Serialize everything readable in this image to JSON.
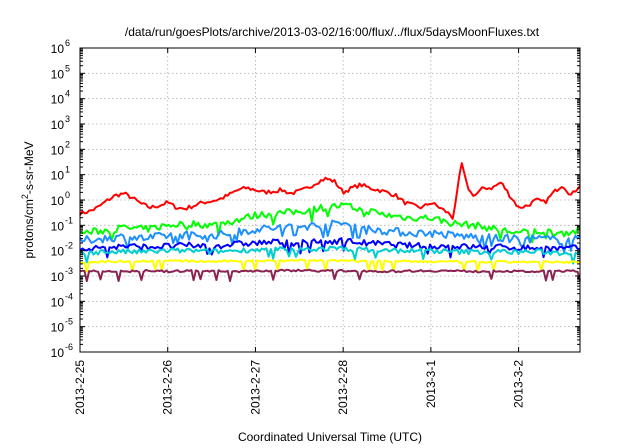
{
  "chart_data": {
    "type": "line",
    "title": "/data/run/goesPlots/archive/2013-03-02/16:00/flux/../flux/5daysMoonFluxes.txt",
    "xlabel": "Coordinated Universal Time (UTC)",
    "ylabel_parts": [
      "protons/cm",
      "2",
      "-s-sr-MeV"
    ],
    "yscale": "log",
    "ylim_exponents": [
      -6,
      6
    ],
    "y_ticks": [
      {
        "base": "10",
        "exp": "6"
      },
      {
        "base": "10",
        "exp": "5"
      },
      {
        "base": "10",
        "exp": "4"
      },
      {
        "base": "10",
        "exp": "3"
      },
      {
        "base": "10",
        "exp": "2"
      },
      {
        "base": "10",
        "exp": "1"
      },
      {
        "base": "10",
        "exp": "0"
      },
      {
        "base": "10",
        "exp": "-1"
      },
      {
        "base": "10",
        "exp": "-2"
      },
      {
        "base": "10",
        "exp": "-3"
      },
      {
        "base": "10",
        "exp": "-4"
      },
      {
        "base": "10",
        "exp": "-5"
      },
      {
        "base": "10",
        "exp": "-6"
      }
    ],
    "x_ticks": [
      "2013-2-25",
      "2013-2-26",
      "2013-2-27",
      "2013-2-28",
      "2013-3-1",
      "2013-3-2"
    ],
    "xlim_days": [
      0,
      5.7
    ],
    "grid": true,
    "legend": "none",
    "series": [
      {
        "color": "#ff0000",
        "x": [
          0,
          0.1,
          0.2,
          0.3,
          0.4,
          0.5,
          0.6,
          0.7,
          0.8,
          0.9,
          1.0,
          1.1,
          1.2,
          1.3,
          1.4,
          1.5,
          1.6,
          1.7,
          1.8,
          1.9,
          2.0,
          2.1,
          2.2,
          2.3,
          2.4,
          2.5,
          2.6,
          2.7,
          2.8,
          2.9,
          3.0,
          3.1,
          3.2,
          3.3,
          3.4,
          3.5,
          3.6,
          3.7,
          3.8,
          3.9,
          4.0,
          4.1,
          4.2,
          4.25,
          4.3,
          4.35,
          4.4,
          4.45,
          4.5,
          4.6,
          4.7,
          4.8,
          4.9,
          5.0,
          5.1,
          5.2,
          5.3,
          5.4,
          5.5,
          5.6,
          5.7
        ],
        "y": [
          0.3,
          0.35,
          0.5,
          0.9,
          1.5,
          1.8,
          1.2,
          0.7,
          0.5,
          0.6,
          0.8,
          0.5,
          0.45,
          0.6,
          0.8,
          0.9,
          1.1,
          1.6,
          2.5,
          3.0,
          2.5,
          2.0,
          2.2,
          2.5,
          1.8,
          2.2,
          3.0,
          5.0,
          7.0,
          5.5,
          2.0,
          3.0,
          4.0,
          3.0,
          2.5,
          2.0,
          1.5,
          0.8,
          0.6,
          0.5,
          0.8,
          0.5,
          0.3,
          0.2,
          2.0,
          30.0,
          5.0,
          2.0,
          1.5,
          3.0,
          3.0,
          5.0,
          1.5,
          0.5,
          0.6,
          1.0,
          0.8,
          2.0,
          4.0,
          1.5,
          4.0
        ]
      },
      {
        "color": "#00ff00",
        "x": [
          0,
          0.25,
          0.5,
          0.75,
          1.0,
          1.25,
          1.5,
          1.75,
          2.0,
          2.25,
          2.5,
          2.75,
          3.0,
          3.25,
          3.5,
          3.75,
          4.0,
          4.25,
          4.5,
          4.75,
          5.0,
          5.25,
          5.5,
          5.7
        ],
        "y": [
          0.05,
          0.06,
          0.08,
          0.07,
          0.1,
          0.12,
          0.1,
          0.15,
          0.25,
          0.3,
          0.35,
          0.5,
          0.6,
          0.4,
          0.25,
          0.2,
          0.2,
          0.12,
          0.1,
          0.07,
          0.05,
          0.06,
          0.05,
          0.06
        ]
      },
      {
        "color": "#1e90ff",
        "x": [
          0,
          0.25,
          0.5,
          0.75,
          1.0,
          1.25,
          1.5,
          1.75,
          2.0,
          2.25,
          2.5,
          2.75,
          3.0,
          3.25,
          3.5,
          3.75,
          4.0,
          4.25,
          4.5,
          4.75,
          5.0,
          5.25,
          5.5,
          5.7
        ],
        "y": [
          0.025,
          0.03,
          0.035,
          0.03,
          0.04,
          0.045,
          0.04,
          0.05,
          0.07,
          0.08,
          0.09,
          0.1,
          0.12,
          0.08,
          0.06,
          0.05,
          0.05,
          0.04,
          0.035,
          0.03,
          0.03,
          0.03,
          0.025,
          0.03
        ]
      },
      {
        "color": "#0000ff",
        "x": [
          0,
          0.25,
          0.5,
          0.75,
          1.0,
          1.25,
          1.5,
          1.75,
          2.0,
          2.25,
          2.5,
          2.75,
          3.0,
          3.25,
          3.5,
          3.75,
          4.0,
          4.25,
          4.5,
          4.75,
          5.0,
          5.25,
          5.5,
          5.7
        ],
        "y": [
          0.012,
          0.013,
          0.015,
          0.014,
          0.015,
          0.016,
          0.015,
          0.018,
          0.02,
          0.022,
          0.02,
          0.022,
          0.025,
          0.02,
          0.018,
          0.016,
          0.015,
          0.015,
          0.014,
          0.014,
          0.013,
          0.013,
          0.012,
          0.013
        ]
      },
      {
        "color": "#00ced1",
        "x": [
          0,
          0.25,
          0.5,
          0.75,
          1.0,
          1.25,
          1.5,
          1.75,
          2.0,
          2.25,
          2.5,
          2.75,
          3.0,
          3.25,
          3.5,
          3.75,
          4.0,
          4.25,
          4.5,
          4.75,
          5.0,
          5.25,
          5.5,
          5.7
        ],
        "y": [
          0.008,
          0.009,
          0.009,
          0.009,
          0.01,
          0.01,
          0.009,
          0.01,
          0.011,
          0.011,
          0.011,
          0.012,
          0.012,
          0.011,
          0.01,
          0.01,
          0.01,
          0.009,
          0.009,
          0.009,
          0.009,
          0.009,
          0.008,
          0.009
        ]
      },
      {
        "color": "#ffff00",
        "x": [
          0,
          0.5,
          1.0,
          1.5,
          2.0,
          2.5,
          3.0,
          3.5,
          4.0,
          4.5,
          5.0,
          5.5,
          5.7
        ],
        "y": [
          0.0035,
          0.0038,
          0.004,
          0.0037,
          0.004,
          0.0042,
          0.004,
          0.0038,
          0.0037,
          0.0036,
          0.0036,
          0.0035,
          0.0036
        ]
      },
      {
        "color": "#8b2252",
        "x": [
          0,
          0.25,
          0.5,
          0.75,
          1.0,
          1.25,
          1.5,
          1.75,
          2.0,
          2.25,
          2.5,
          2.75,
          3.0,
          3.25,
          3.5,
          3.75,
          4.0,
          4.25,
          4.5,
          4.75,
          5.0,
          5.25,
          5.5,
          5.7
        ],
        "y": [
          0.0015,
          0.0016,
          0.0015,
          0.0016,
          0.0015,
          0.0016,
          0.0016,
          0.0015,
          0.0016,
          0.0016,
          0.0017,
          0.0016,
          0.0016,
          0.0016,
          0.0015,
          0.0016,
          0.0016,
          0.0016,
          0.0015,
          0.0016,
          0.0015,
          0.0015,
          0.0016,
          0.0015
        ]
      }
    ]
  }
}
